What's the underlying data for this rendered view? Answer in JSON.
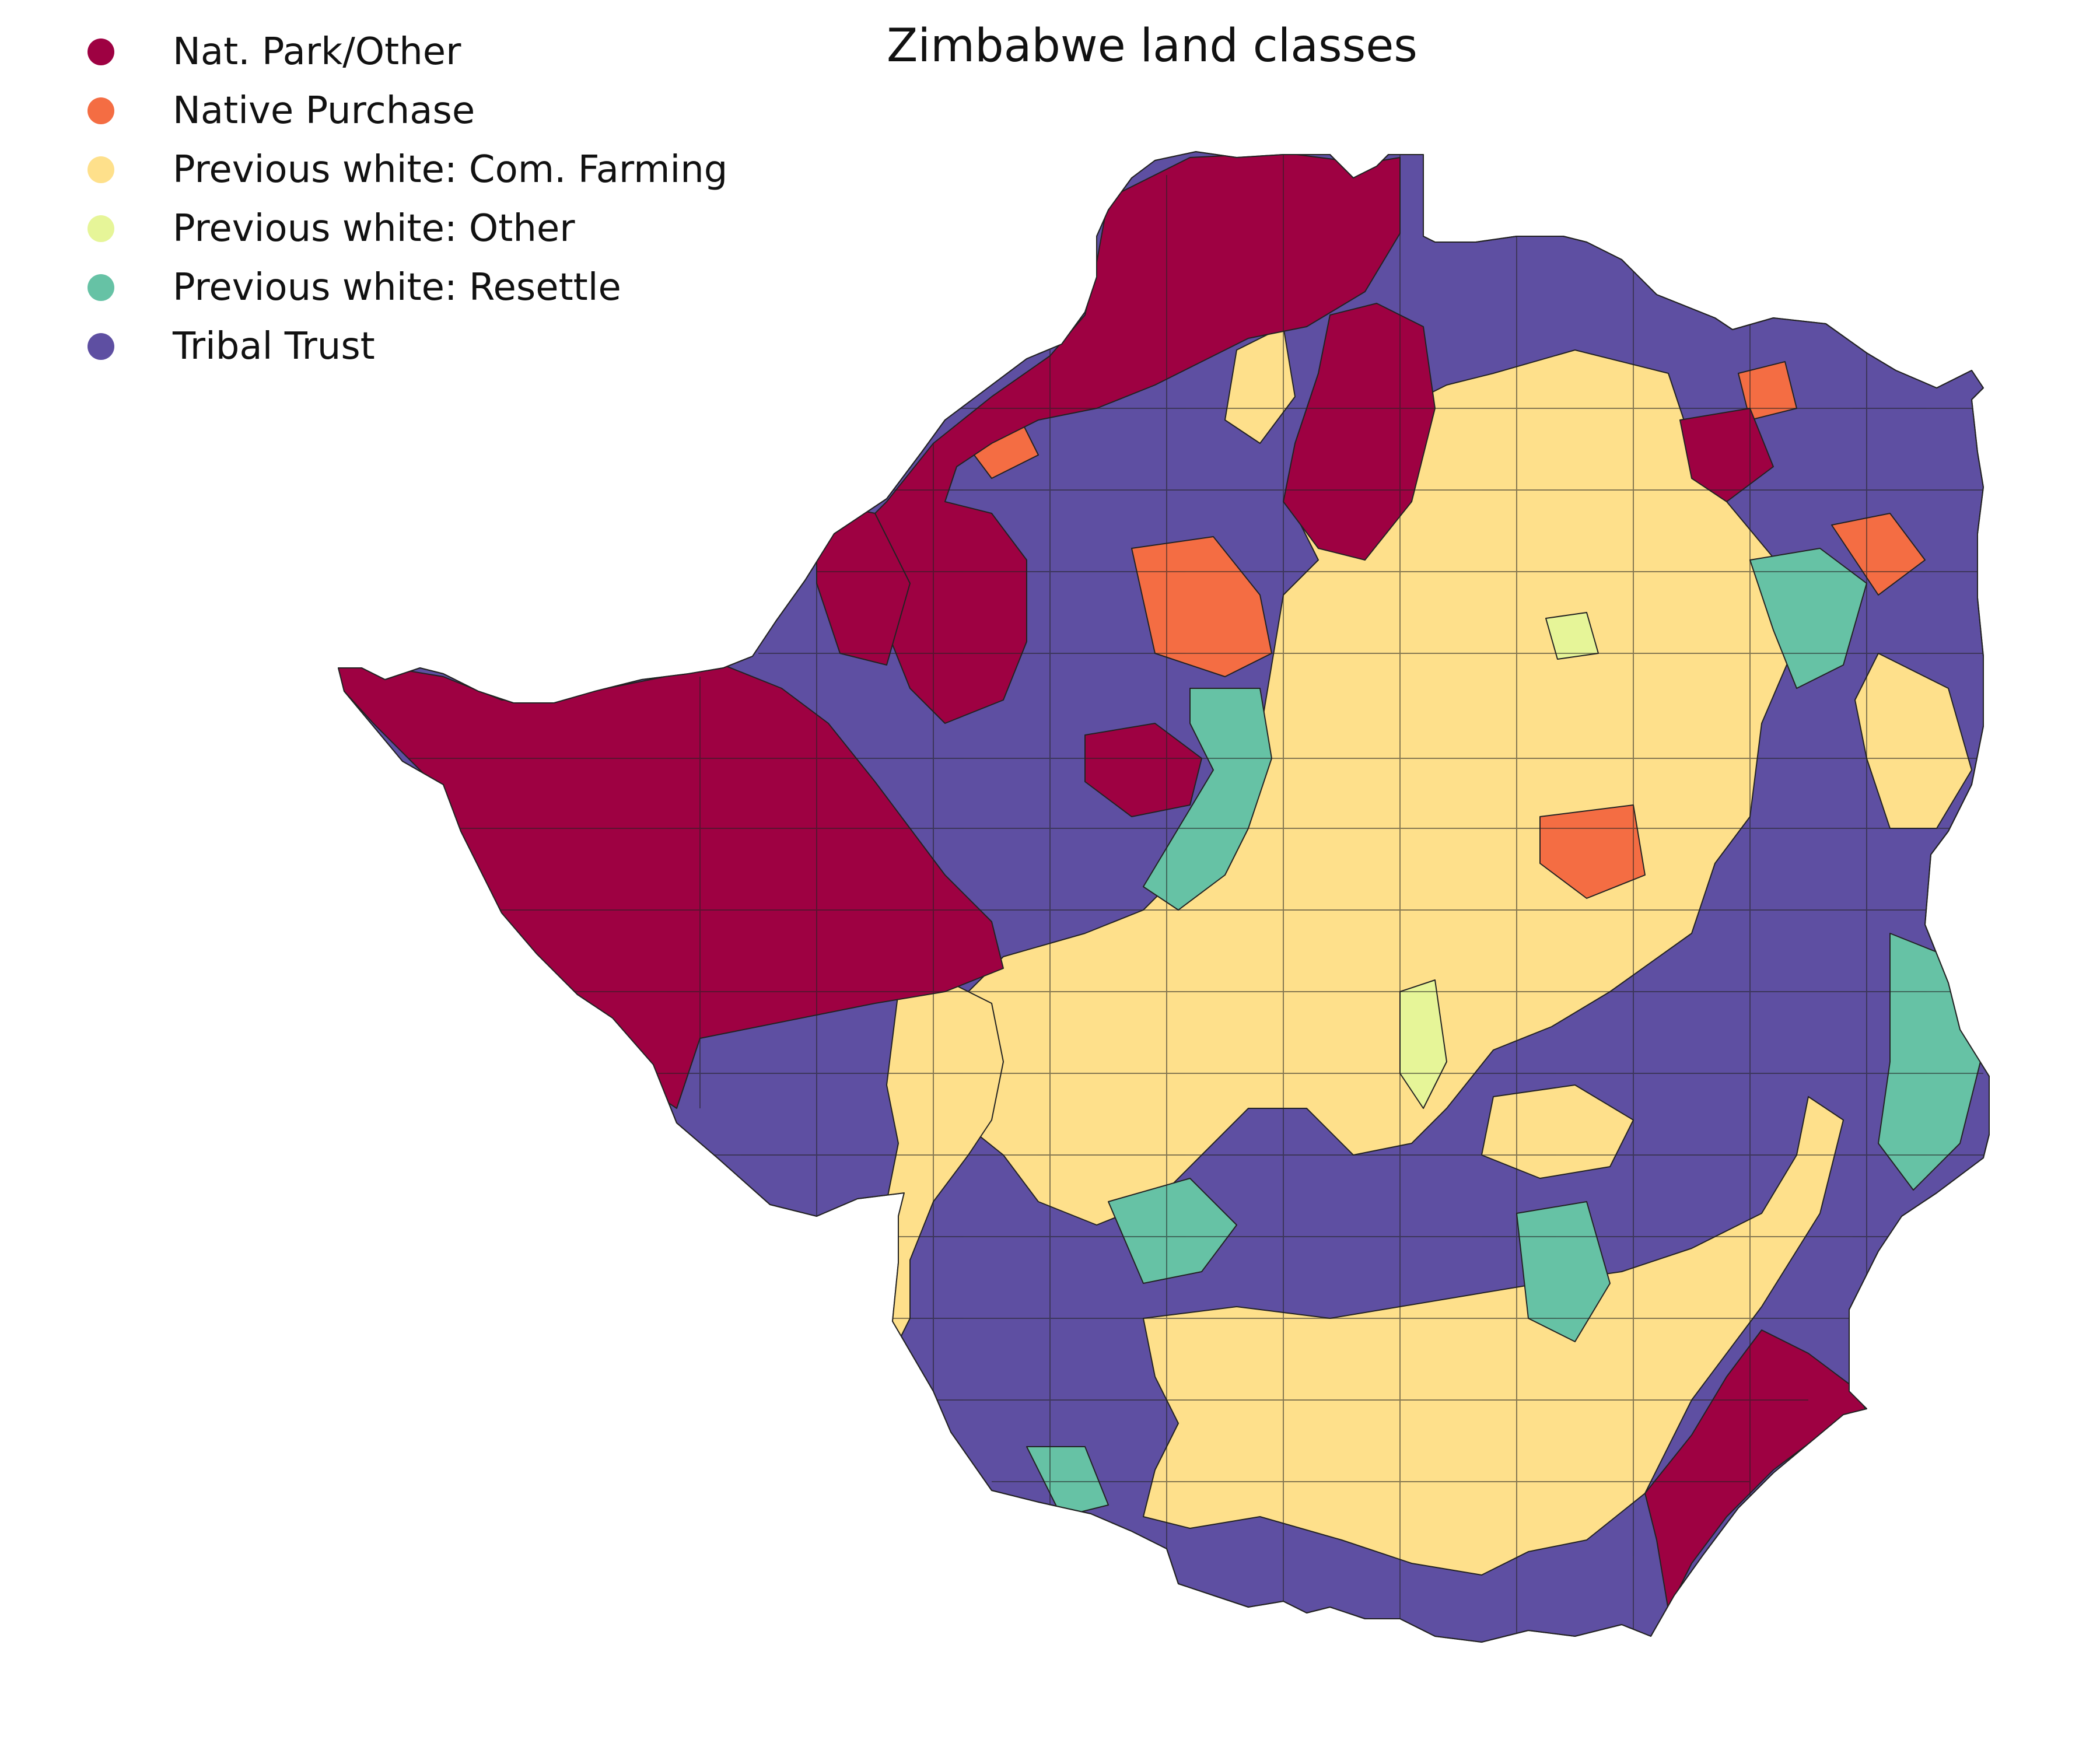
{
  "title": "Zimbabwe land classes",
  "legend": [
    {
      "key": "np",
      "label": "Nat. Park/Other",
      "color": "#9e0142"
    },
    {
      "key": "native",
      "label": "Native Purchase",
      "color": "#f46d43"
    },
    {
      "key": "farm",
      "label": "Previous white: Com. Farming",
      "color": "#fee08b"
    },
    {
      "key": "pwother",
      "label": "Previous white: Other",
      "color": "#e6f598"
    },
    {
      "key": "resettle",
      "label": "Previous white: Resettle",
      "color": "#66c2a5"
    },
    {
      "key": "tribal",
      "label": "Tribal Trust",
      "color": "#5e4fa2"
    }
  ]
}
